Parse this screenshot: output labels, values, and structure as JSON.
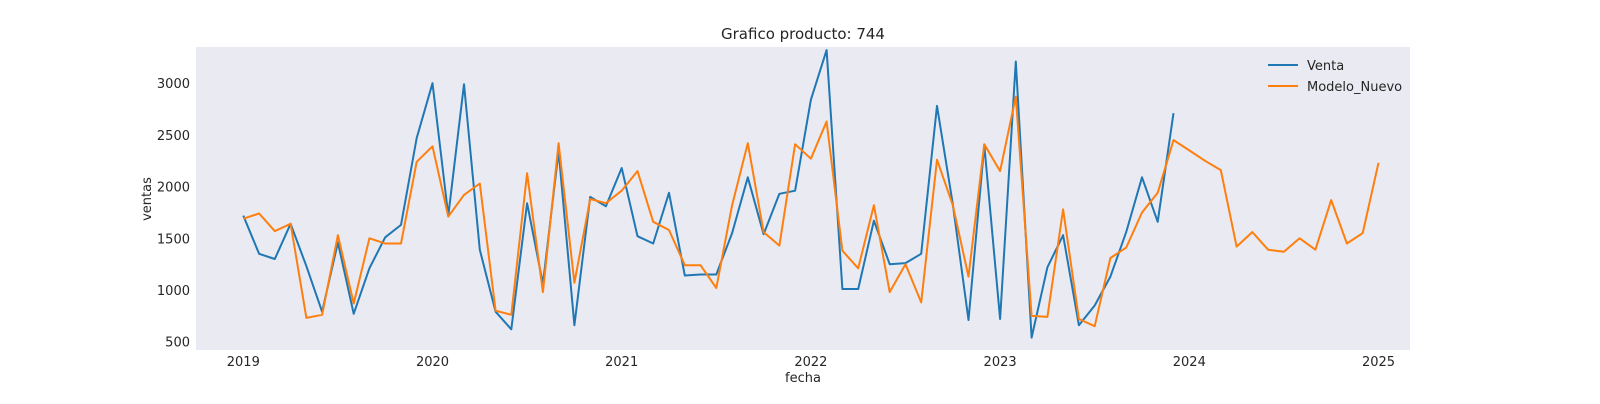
{
  "chart_data": {
    "type": "line",
    "title": "Grafico producto: 744",
    "xlabel": "fecha",
    "ylabel": "ventas",
    "x_ticks": [
      "2019",
      "2020",
      "2021",
      "2022",
      "2023",
      "2024",
      "2025"
    ],
    "y_ticks": [
      500,
      1000,
      1500,
      2000,
      2500,
      3000
    ],
    "xlim": [
      "2018-10-01",
      "2025-03-01"
    ],
    "ylim": [
      420,
      3350
    ],
    "grid": false,
    "legend": "top-right",
    "colors": {
      "plot_background": "#eaeaf2",
      "venta": "#1f77b4",
      "modelo_nuevo": "#ff7f0e"
    },
    "series": [
      {
        "name": "Venta",
        "x_start": "2019-01",
        "values": [
          1720,
          1350,
          1300,
          1640,
          1230,
          790,
          1460,
          770,
          1210,
          1510,
          1630,
          2470,
          3000,
          1720,
          2990,
          1390,
          790,
          620,
          1840,
          1060,
          2340,
          660,
          1900,
          1810,
          2180,
          1520,
          1450,
          1940,
          1140,
          1150,
          1150,
          1550,
          2090,
          1540,
          1930,
          1960,
          2840,
          3320,
          1010,
          1010,
          1670,
          1250,
          1260,
          1350,
          2780,
          1830,
          710,
          2400,
          720,
          3210,
          540,
          1220,
          1530,
          660,
          850,
          1130,
          1560,
          2090,
          1660,
          2710
        ]
      },
      {
        "name": "Modelo_Nuevo",
        "x_start": "2019-01",
        "values": [
          1690,
          1740,
          1570,
          1640,
          730,
          760,
          1530,
          870,
          1500,
          1450,
          1450,
          2240,
          2390,
          1710,
          1920,
          2030,
          800,
          760,
          2130,
          980,
          2420,
          1070,
          1880,
          1840,
          1960,
          2150,
          1660,
          1580,
          1240,
          1240,
          1020,
          1820,
          2420,
          1560,
          1430,
          2410,
          2270,
          2630,
          1380,
          1210,
          1820,
          980,
          1250,
          880,
          2260,
          1820,
          1130,
          2410,
          2150,
          2870,
          750,
          740,
          1780,
          720,
          650,
          1310,
          1410,
          1750,
          1940,
          2450,
          2350,
          2250,
          2160,
          1420,
          1560,
          1390,
          1370,
          1500,
          1390,
          1870,
          1450,
          1550,
          2230
        ]
      }
    ]
  }
}
